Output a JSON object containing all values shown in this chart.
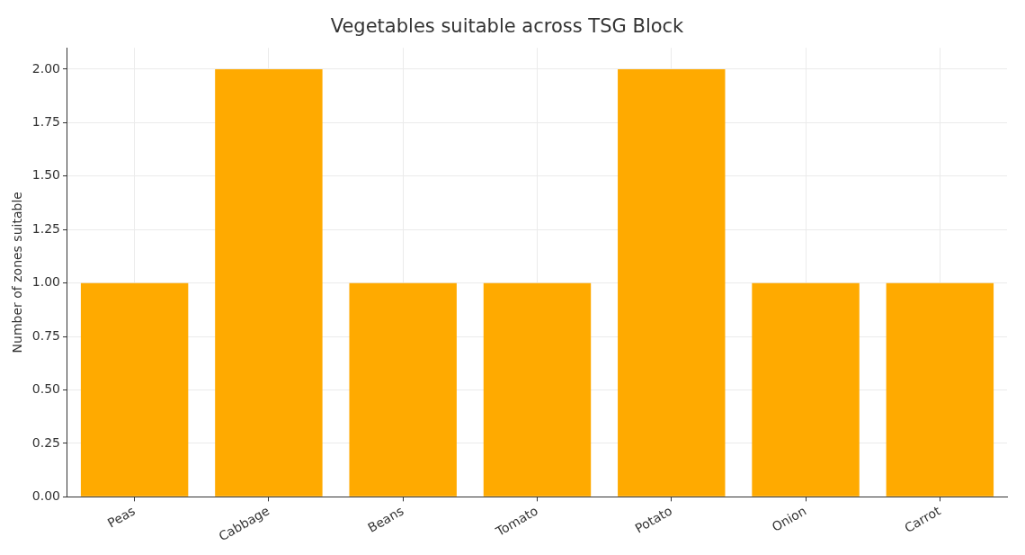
{
  "chart_data": {
    "type": "bar",
    "title": "Vegetables suitable across TSG Block",
    "ylabel": "Number of zones suitable",
    "categories": [
      "Peas",
      "Cabbage",
      "Beans",
      "Tomato",
      "Potato",
      "Onion",
      "Carrot"
    ],
    "values": [
      1,
      2,
      1,
      1,
      2,
      1,
      1
    ],
    "color": "#ffaa00",
    "ylim": [
      0,
      2.1
    ],
    "yticks": [
      {
        "value": 0,
        "label": "0.00"
      },
      {
        "value": 0.25,
        "label": "0.25"
      },
      {
        "value": 0.5,
        "label": "0.50"
      },
      {
        "value": 0.75,
        "label": "0.75"
      },
      {
        "value": 1,
        "label": "1.00"
      },
      {
        "value": 1.25,
        "label": "1.25"
      },
      {
        "value": 1.5,
        "label": "1.50"
      },
      {
        "value": 1.75,
        "label": "1.75"
      },
      {
        "value": 2,
        "label": "2.00"
      }
    ],
    "grid": true
  }
}
